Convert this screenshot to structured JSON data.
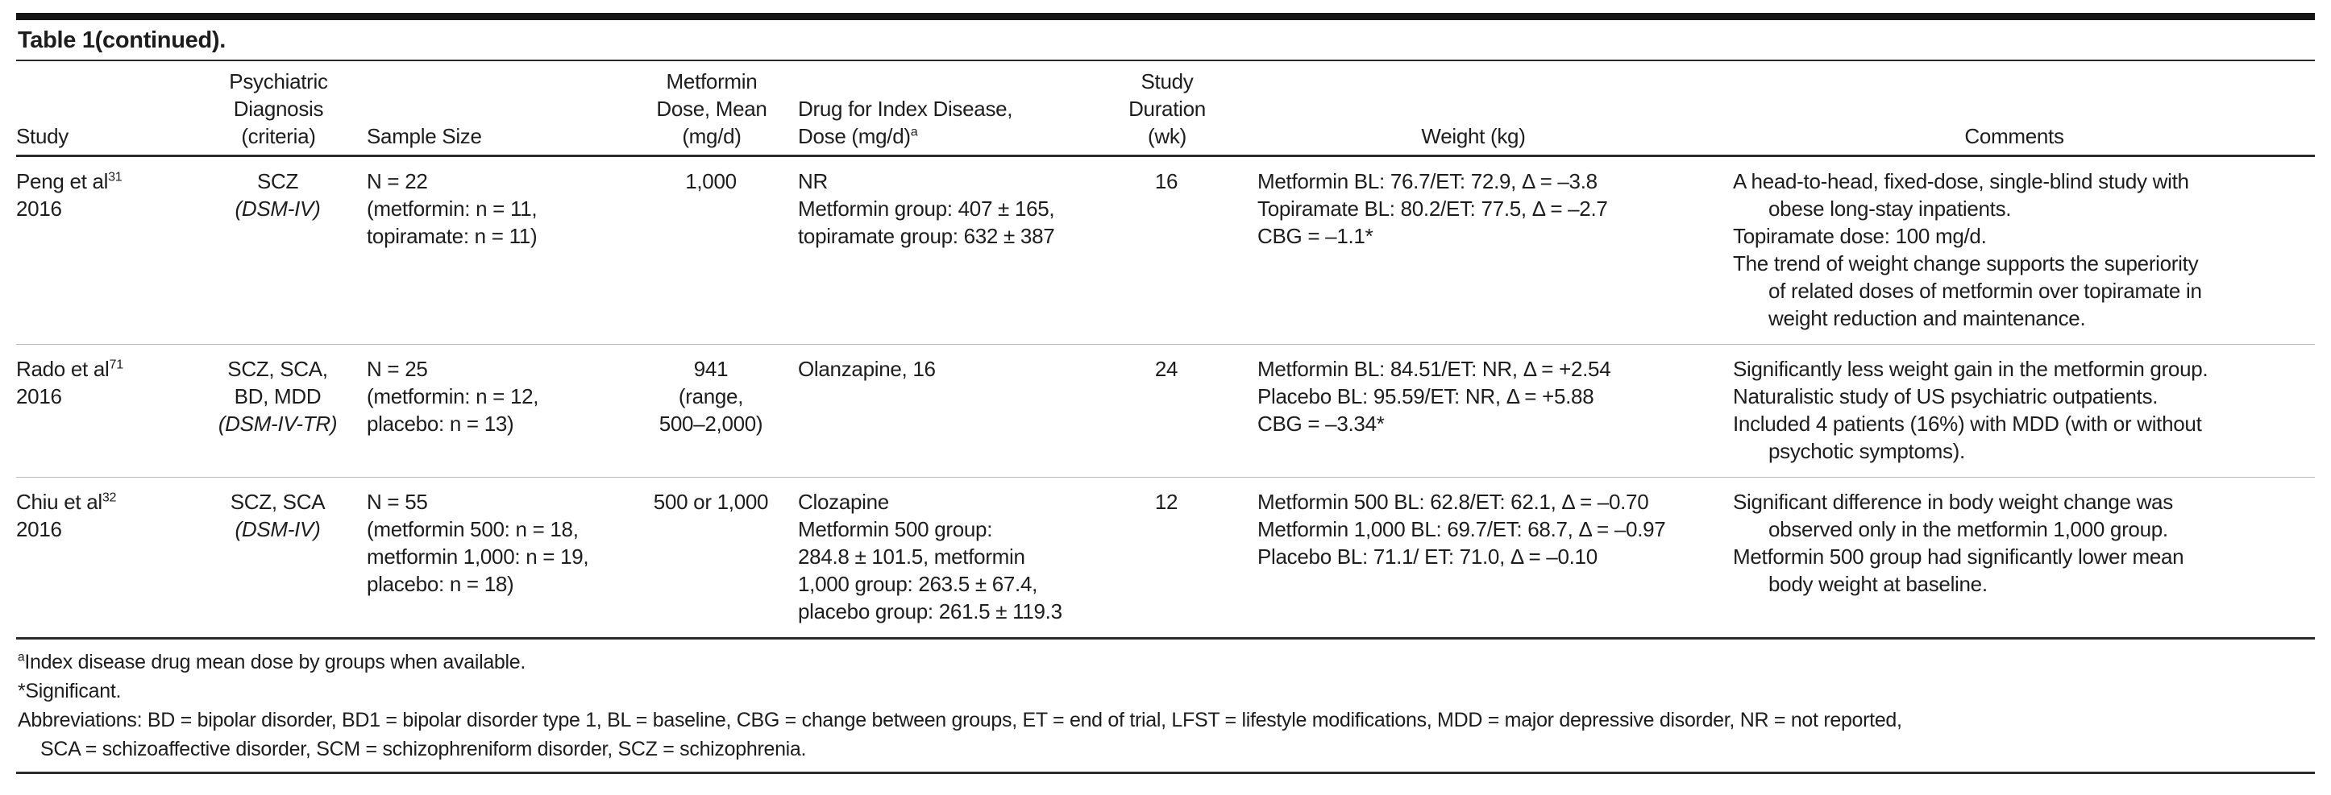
{
  "table": {
    "title": "Table 1(continued).",
    "colors": {
      "text": "#1d1d1d",
      "rule_dark": "#2a2a2a",
      "rule_light": "#bababa",
      "background": "#ffffff"
    },
    "header": {
      "study": [
        "Study"
      ],
      "diagnosis": [
        "Psychiatric",
        "Diagnosis",
        "(criteria)"
      ],
      "sample": [
        "Sample Size"
      ],
      "dose": [
        "Metformin",
        "Dose, Mean",
        "(mg/d)"
      ],
      "index_drug": [
        "Drug for Index Disease,",
        {
          "t": "Dose (mg/d)",
          "sup": "a"
        }
      ],
      "duration": [
        "Study",
        "Duration",
        "(wk)"
      ],
      "weight": [
        "Weight (kg)"
      ],
      "comments": [
        "Comments"
      ]
    },
    "rows": [
      {
        "study": [
          {
            "t": "Peng et al",
            "sup": "31"
          },
          "2016"
        ],
        "diagnosis": [
          "SCZ",
          {
            "t": "(DSM-IV)",
            "italic": true
          }
        ],
        "sample": [
          "N = 22",
          "(metformin: n = 11,",
          "topiramate: n = 11)"
        ],
        "dose": [
          "1,000"
        ],
        "index_drug": [
          "NR",
          "Metformin group: 407 ± 165,",
          "topiramate group: 632 ± 387"
        ],
        "duration": [
          "16"
        ],
        "weight": [
          "Metformin BL: 76.7/ET: 72.9, Δ = –3.8",
          "Topiramate BL: 80.2/ET: 77.5, Δ = –2.7",
          "CBG = –1.1*"
        ],
        "comments": [
          {
            "t": "A head-to-head, fixed-dose, single-blind study with"
          },
          {
            "t": "obese long-stay inpatients.",
            "i": 1
          },
          {
            "t": "Topiramate dose: 100 mg/d."
          },
          {
            "t": "The trend of weight change supports the superiority"
          },
          {
            "t": "of related doses of metformin over topiramate in",
            "i": 1
          },
          {
            "t": "weight reduction and maintenance.",
            "i": 1
          }
        ]
      },
      {
        "study": [
          {
            "t": "Rado et al",
            "sup": "71"
          },
          "2016"
        ],
        "diagnosis": [
          "SCZ, SCA,",
          "BD, MDD",
          {
            "t": "(DSM-IV-TR)",
            "italic": true
          }
        ],
        "sample": [
          "N = 25",
          "(metformin: n = 12,",
          "placebo: n = 13)"
        ],
        "dose": [
          "941",
          "(range,",
          "500–2,000)"
        ],
        "index_drug": [
          "Olanzapine, 16"
        ],
        "duration": [
          "24"
        ],
        "weight": [
          "Metformin BL: 84.51/ET: NR, Δ = +2.54",
          "Placebo BL: 95.59/ET: NR, Δ = +5.88",
          "CBG = –3.34*"
        ],
        "comments": [
          {
            "t": "Significantly less weight gain in the metformin group."
          },
          {
            "t": "Naturalistic study of US psychiatric outpatients."
          },
          {
            "t": "Included 4 patients (16%) with MDD (with or without"
          },
          {
            "t": "psychotic symptoms).",
            "i": 1
          }
        ]
      },
      {
        "study": [
          {
            "t": "Chiu et al",
            "sup": "32"
          },
          "2016"
        ],
        "diagnosis": [
          "SCZ, SCA",
          {
            "t": "(DSM-IV)",
            "italic": true
          }
        ],
        "sample": [
          "N = 55",
          "(metformin 500: n = 18,",
          "metformin 1,000: n = 19,",
          "placebo: n = 18)"
        ],
        "dose": [
          "500 or 1,000"
        ],
        "index_drug": [
          "Clozapine",
          "Metformin 500 group:",
          "284.8 ± 101.5, metformin",
          "1,000 group: 263.5 ± 67.4,",
          "placebo group: 261.5 ± 119.3"
        ],
        "duration": [
          "12"
        ],
        "weight": [
          "Metformin 500 BL: 62.8/ET: 62.1, Δ = –0.70",
          "Metformin 1,000 BL: 69.7/ET: 68.7, Δ = –0.97",
          "Placebo BL: 71.1/ ET: 71.0, Δ = –0.10"
        ],
        "comments": [
          {
            "t": "Significant difference in body weight change was"
          },
          {
            "t": "observed only in the metformin 1,000 group.",
            "i": 1
          },
          {
            "t": "Metformin 500 group had significantly lower mean"
          },
          {
            "t": "body weight at baseline.",
            "i": 1
          }
        ]
      }
    ],
    "footnotes": [
      {
        "t": "Index disease drug mean dose by groups when available.",
        "sup_lead": "a"
      },
      {
        "t": "*Significant."
      },
      {
        "t": "Abbreviations: BD = bipolar disorder, BD1 = bipolar disorder type 1, BL = baseline, CBG = change between groups, ET = end of trial, LFST = lifestyle modifications, MDD = major depressive disorder, NR = not reported,"
      },
      {
        "t": "SCA = schizoaffective disorder, SCM = schizophreniform disorder, SCZ = schizophrenia.",
        "i": 1
      }
    ]
  }
}
